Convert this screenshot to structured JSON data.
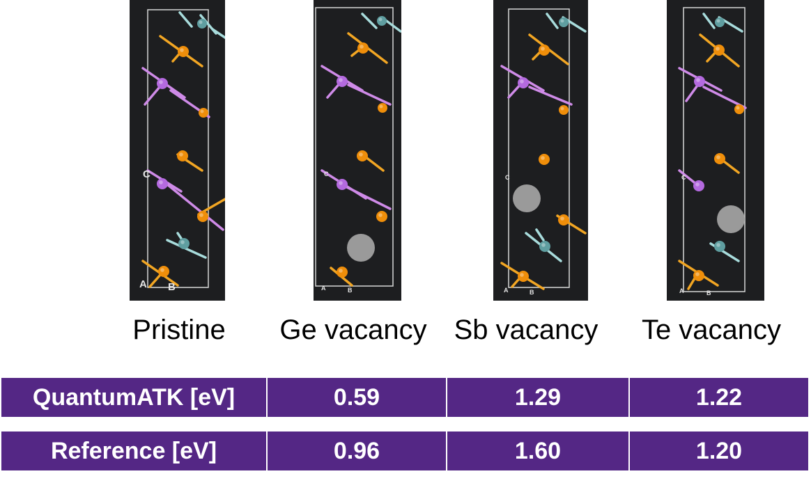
{
  "structures": [
    {
      "id": "pristine",
      "caption": "Pristine",
      "axis_labels": {
        "a": "A",
        "b": "B",
        "c": "C"
      }
    },
    {
      "id": "ge",
      "caption": "Ge vacancy",
      "axis_labels": {
        "a": "A",
        "b": "B",
        "c": "C"
      }
    },
    {
      "id": "sb",
      "caption": "Sb vacancy",
      "axis_labels": {
        "a": "A",
        "b": "B",
        "c": "C"
      }
    },
    {
      "id": "te",
      "caption": "Te vacancy",
      "axis_labels": {
        "a": "A",
        "b": "B",
        "c": "C"
      }
    }
  ],
  "atom_colors": {
    "te": "#ef8e0a",
    "sb": "#b46adf",
    "ge": "#5f9ea0",
    "vacancy": "#9a9a9a"
  },
  "table": {
    "rows": [
      {
        "label": "QuantumATK [eV]",
        "values": [
          "0.59",
          "1.29",
          "1.22"
        ]
      },
      {
        "label": "Reference [eV]",
        "values": [
          "0.96",
          "1.60",
          "1.20"
        ]
      }
    ],
    "fill": "#542785"
  }
}
